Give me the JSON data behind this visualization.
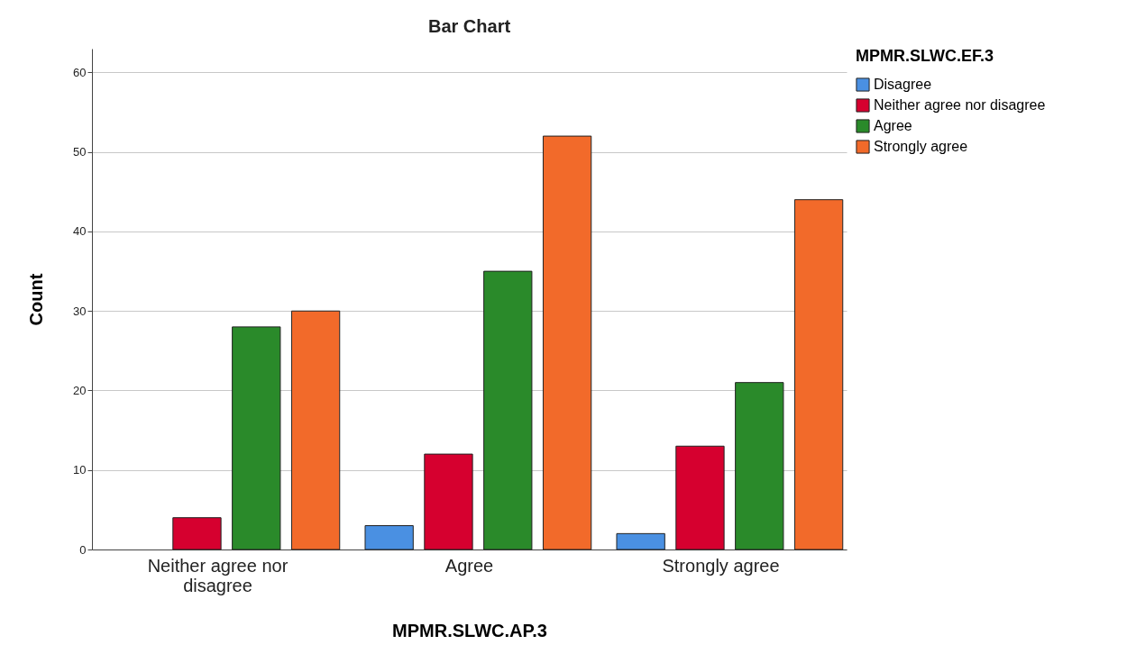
{
  "chart_data": {
    "type": "bar",
    "title": "Bar Chart",
    "xlabel": "MPMR.SLWC.AP.3",
    "ylabel": "Count",
    "legend_title": "MPMR.SLWC.EF.3",
    "categories": [
      "Neither agree nor disagree",
      "Agree",
      "Strongly agree"
    ],
    "series": [
      {
        "name": "Disagree",
        "color": "#4a90e2",
        "values": [
          null,
          3,
          2
        ]
      },
      {
        "name": "Neither agree nor disagree",
        "color": "#d6002f",
        "values": [
          4,
          12,
          13
        ]
      },
      {
        "name": "Agree",
        "color": "#2a8a2a",
        "values": [
          28,
          35,
          21
        ]
      },
      {
        "name": "Strongly agree",
        "color": "#f26a2a",
        "values": [
          30,
          52,
          44
        ]
      }
    ],
    "ylim": [
      0,
      63
    ],
    "yticks": [
      0,
      10,
      20,
      30,
      40,
      50,
      60
    ],
    "grid": "y",
    "legend": "top right"
  }
}
